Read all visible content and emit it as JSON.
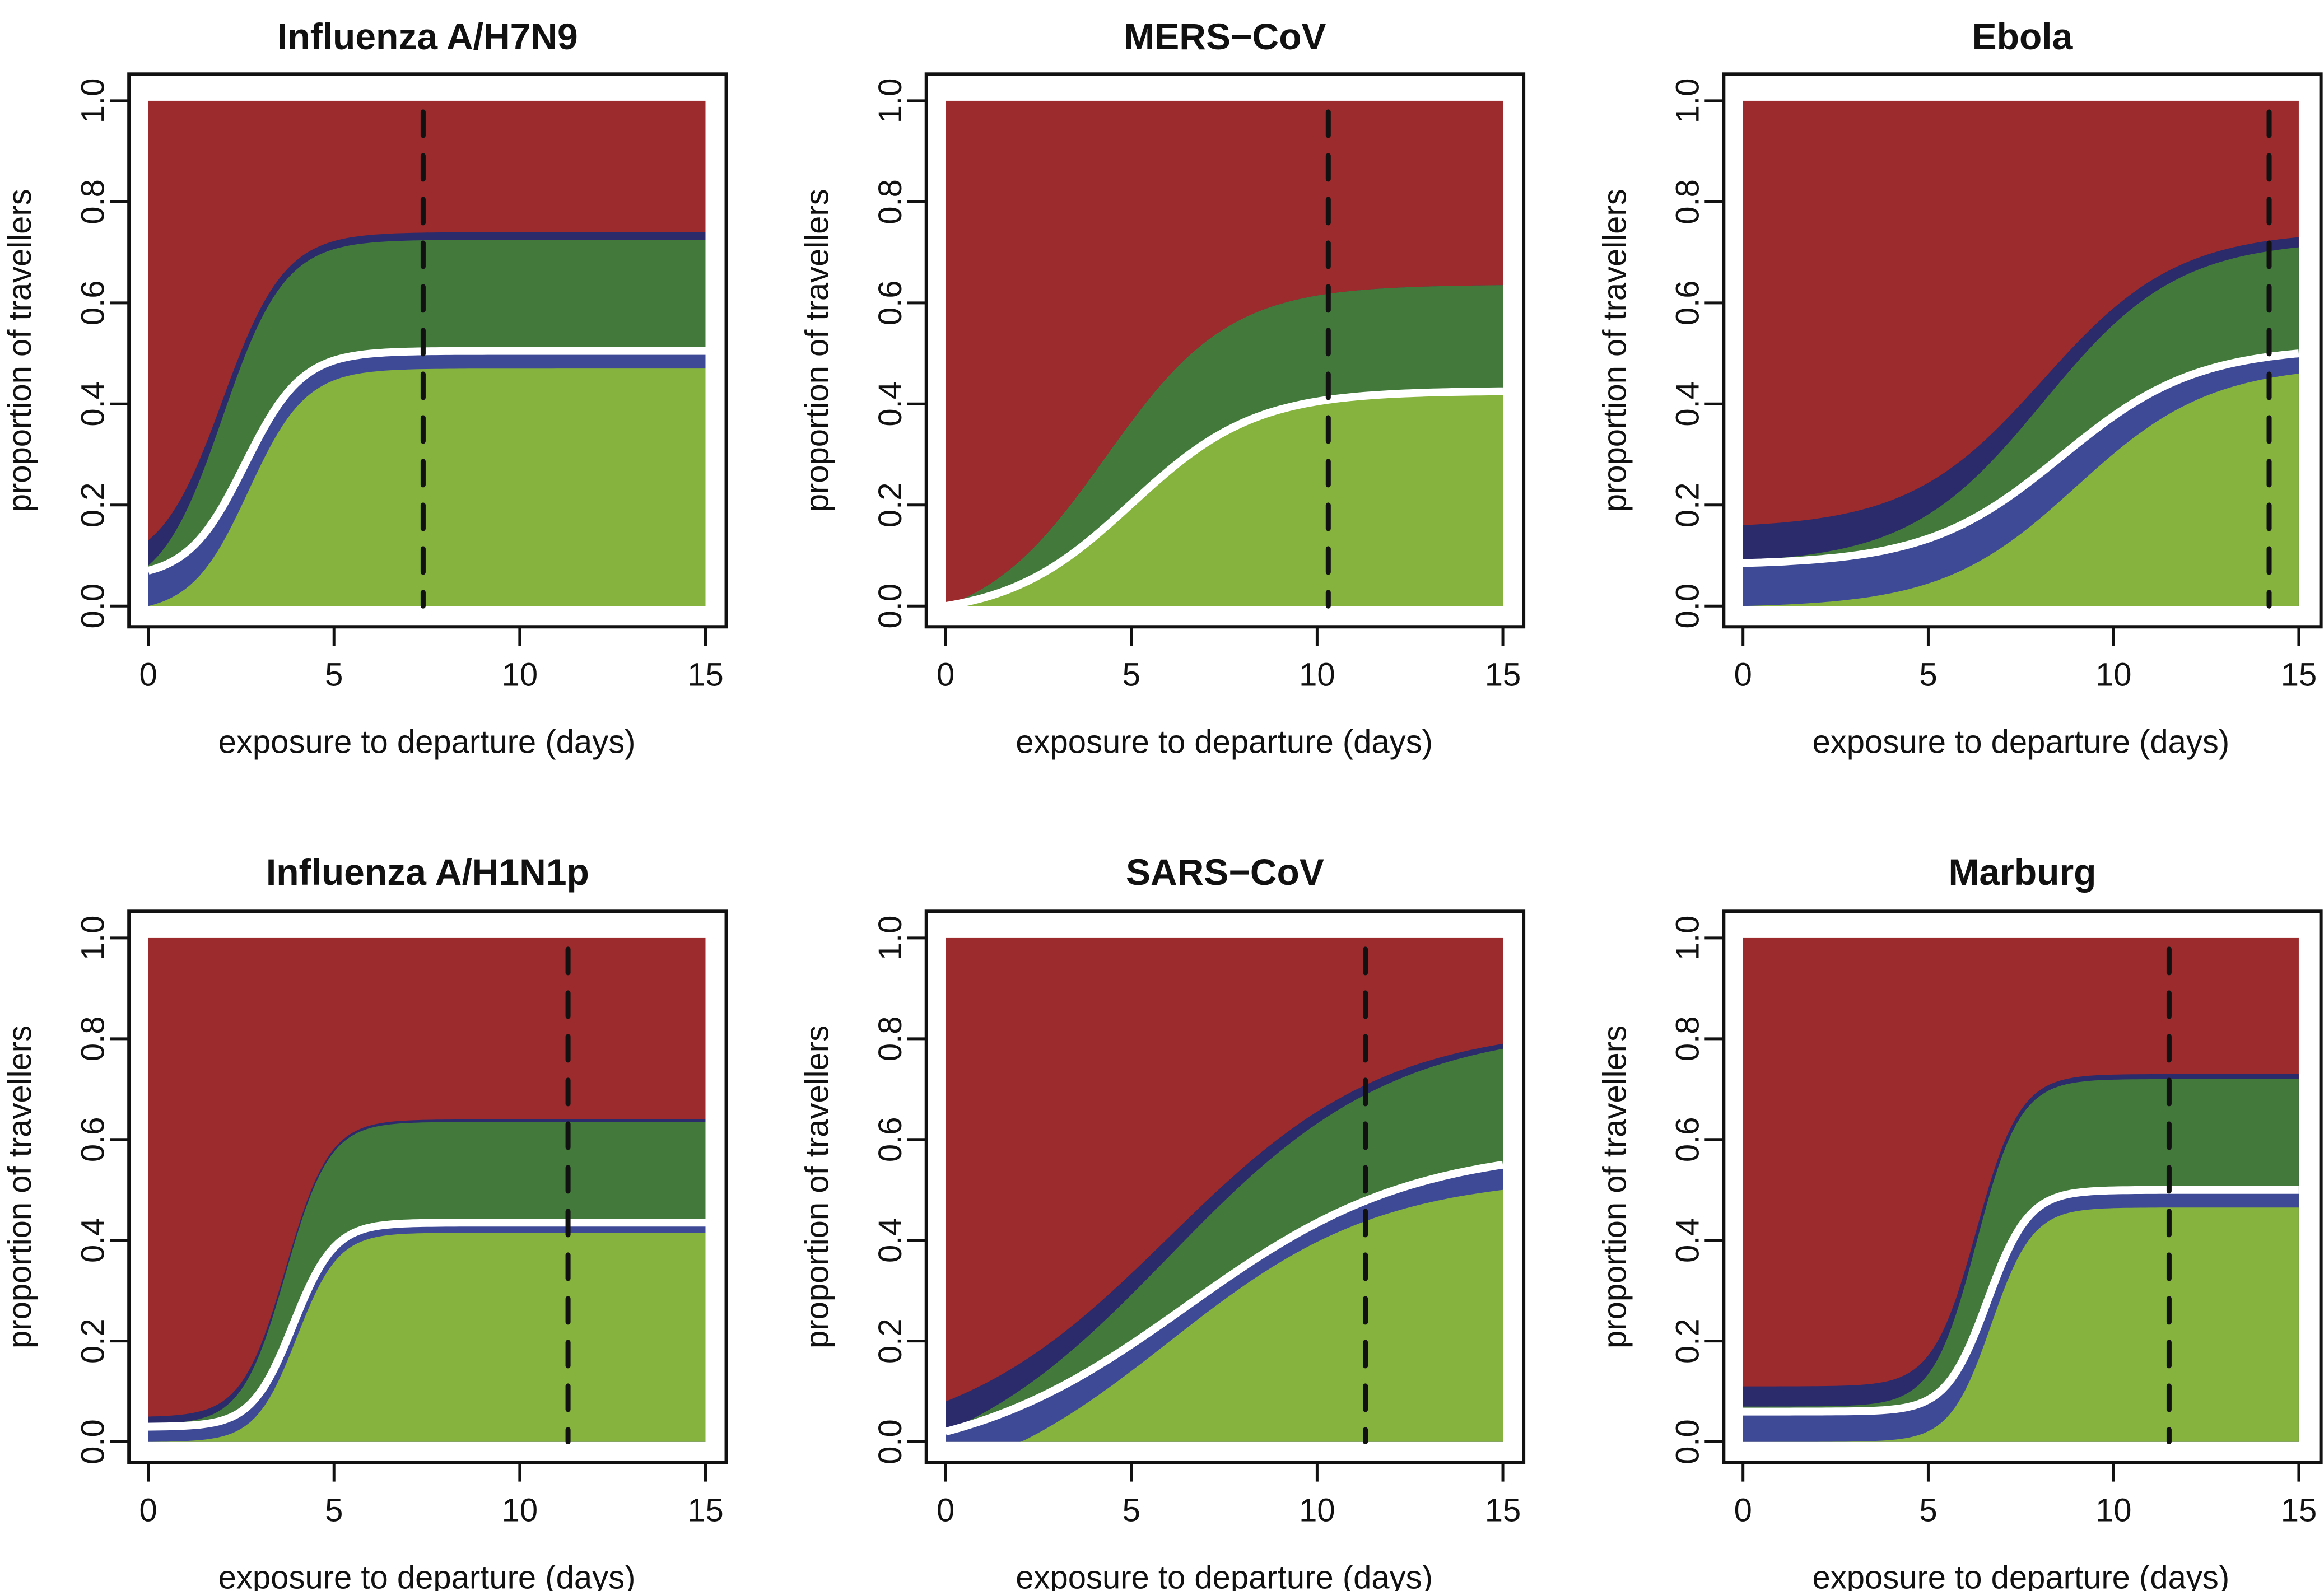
{
  "chart_data": [
    {
      "type": "area",
      "title": "Influenza A/H7N9",
      "xlabel": "exposure to departure (days)",
      "ylabel": "proportion of travellers",
      "xlim": [
        0,
        15
      ],
      "ylim": [
        0,
        1
      ],
      "xticks": [
        0,
        5,
        10,
        15
      ],
      "yticks": [
        "0.0",
        "0.2",
        "0.4",
        "0.6",
        "0.8",
        "1.0"
      ],
      "vline_x": 7.4,
      "bands": {
        "light_blue_bottom": {
          "start": 0.0,
          "end": 0.47,
          "mid": 2.7,
          "rate": 1.3
        },
        "white_line": {
          "start": 0.07,
          "end": 0.505,
          "mid": 2.6,
          "rate": 1.3
        },
        "dark_green_top": {
          "start": 0.08,
          "end": 0.725,
          "mid": 2.0,
          "rate": 1.2
        },
        "dark_blue_top": {
          "start": 0.13,
          "end": 0.74,
          "mid": 2.0,
          "rate": 1.2
        }
      }
    },
    {
      "type": "area",
      "title": "MERS−CoV",
      "xlabel": "exposure to departure (days)",
      "ylabel": "proportion of travellers",
      "xlim": [
        0,
        15
      ],
      "ylim": [
        0,
        1
      ],
      "xticks": [
        0,
        5,
        10,
        15
      ],
      "yticks": [
        "0.0",
        "0.2",
        "0.4",
        "0.6",
        "0.8",
        "1.0"
      ],
      "vline_x": 10.3,
      "bands": {
        "light_blue_bottom": {
          "start": 0.0,
          "end": 0.42,
          "mid": 5.0,
          "rate": 0.6
        },
        "white_line": {
          "start": 0.0,
          "end": 0.425,
          "mid": 5.0,
          "rate": 0.6
        },
        "dark_green_top": {
          "start": 0.0,
          "end": 0.635,
          "mid": 4.3,
          "rate": 0.6
        },
        "dark_blue_top": {
          "start": 0.0,
          "end": 0.635,
          "mid": 4.3,
          "rate": 0.6
        }
      }
    },
    {
      "type": "area",
      "title": "Ebola",
      "xlabel": "exposure to departure (days)",
      "ylabel": "proportion of travellers",
      "xlim": [
        0,
        15
      ],
      "ylim": [
        0,
        1
      ],
      "xticks": [
        0,
        5,
        10,
        15
      ],
      "yticks": [
        "0.0",
        "0.2",
        "0.4",
        "0.6",
        "0.8",
        "1.0"
      ],
      "vline_x": 14.2,
      "bands": {
        "light_blue_bottom": {
          "start": 0.0,
          "end": 0.46,
          "mid": 9.0,
          "rate": 0.55
        },
        "white_line": {
          "start": 0.085,
          "end": 0.5,
          "mid": 8.6,
          "rate": 0.55
        },
        "dark_green_top": {
          "start": 0.09,
          "end": 0.71,
          "mid": 8.1,
          "rate": 0.55
        },
        "dark_blue_top": {
          "start": 0.16,
          "end": 0.73,
          "mid": 8.1,
          "rate": 0.55
        }
      }
    },
    {
      "type": "area",
      "title": "Influenza A/H1N1p",
      "xlabel": "exposure to departure (days)",
      "ylabel": "proportion of travellers",
      "xlim": [
        0,
        15
      ],
      "ylim": [
        0,
        1
      ],
      "xticks": [
        0,
        5,
        10,
        15
      ],
      "yticks": [
        "0.0",
        "0.2",
        "0.4",
        "0.6",
        "0.8",
        "1.0"
      ],
      "vline_x": 11.3,
      "bands": {
        "light_blue_bottom": {
          "start": 0.0,
          "end": 0.415,
          "mid": 4.0,
          "rate": 1.8
        },
        "white_line": {
          "start": 0.03,
          "end": 0.435,
          "mid": 3.9,
          "rate": 1.8
        },
        "dark_green_top": {
          "start": 0.035,
          "end": 0.635,
          "mid": 3.7,
          "rate": 1.7
        },
        "dark_blue_top": {
          "start": 0.05,
          "end": 0.64,
          "mid": 3.7,
          "rate": 1.7
        }
      }
    },
    {
      "type": "area",
      "title": "SARS−CoV",
      "xlabel": "exposure to departure (days)",
      "ylabel": "proportion of travellers",
      "xlim": [
        0,
        15
      ],
      "ylim": [
        0,
        1
      ],
      "xticks": [
        0,
        5,
        10,
        15
      ],
      "yticks": [
        "0.0",
        "0.2",
        "0.4",
        "0.6",
        "0.8",
        "1.0"
      ],
      "vline_x": 11.3,
      "bands": {
        "light_blue_bottom": {
          "start": -0.06,
          "end": 0.5,
          "mid": 6.0,
          "rate": 0.35
        },
        "white_line": {
          "start": 0.02,
          "end": 0.55,
          "mid": 6.5,
          "rate": 0.33
        },
        "dark_green_top": {
          "start": 0.02,
          "end": 0.78,
          "mid": 6.0,
          "rate": 0.33
        },
        "dark_blue_top": {
          "start": 0.08,
          "end": 0.79,
          "mid": 6.0,
          "rate": 0.34
        }
      }
    },
    {
      "type": "area",
      "title": "Marburg",
      "xlabel": "exposure to departure (days)",
      "ylabel": "proportion of travellers",
      "xlim": [
        0,
        15
      ],
      "ylim": [
        0,
        1
      ],
      "xticks": [
        0,
        5,
        10,
        15
      ],
      "yticks": [
        "0.0",
        "0.2",
        "0.4",
        "0.6",
        "0.8",
        "1.0"
      ],
      "vline_x": 11.5,
      "bands": {
        "light_blue_bottom": {
          "start": 0.0,
          "end": 0.465,
          "mid": 6.7,
          "rate": 1.8
        },
        "white_line": {
          "start": 0.06,
          "end": 0.5,
          "mid": 6.6,
          "rate": 1.8
        },
        "dark_green_top": {
          "start": 0.07,
          "end": 0.72,
          "mid": 6.3,
          "rate": 1.7
        },
        "dark_blue_top": {
          "start": 0.11,
          "end": 0.73,
          "mid": 6.3,
          "rate": 1.7
        }
      }
    }
  ],
  "colors": {
    "red": "#9b2b2d",
    "dark_blue": "#2b2a6b",
    "dark_green": "#437a3c",
    "light_blue": "#3f4a97",
    "light_green": "#86b33d",
    "white_line": "#ffffff"
  }
}
